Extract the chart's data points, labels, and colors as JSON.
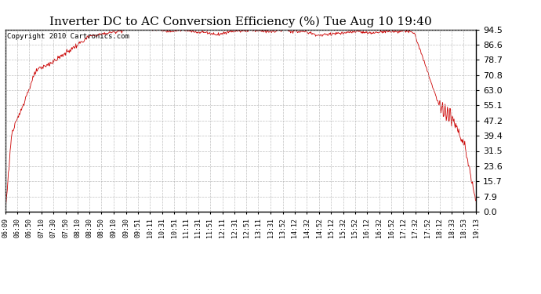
{
  "title": "Inverter DC to AC Conversion Efficiency (%) Tue Aug 10 19:40",
  "copyright_text": "Copyright 2010 Cartronics.com",
  "line_color": "#cc0000",
  "background_color": "#ffffff",
  "plot_bg_color": "#ffffff",
  "grid_color": "#b0b0b0",
  "ylim": [
    0.0,
    94.5
  ],
  "yticks": [
    0.0,
    7.9,
    15.7,
    23.6,
    31.5,
    39.4,
    47.2,
    55.1,
    63.0,
    70.8,
    78.7,
    86.6,
    94.5
  ],
  "xtick_labels": [
    "06:09",
    "06:30",
    "06:50",
    "07:10",
    "07:30",
    "07:50",
    "08:10",
    "08:30",
    "08:50",
    "09:10",
    "09:30",
    "09:51",
    "10:11",
    "10:31",
    "10:51",
    "11:11",
    "11:31",
    "11:51",
    "12:11",
    "12:31",
    "12:51",
    "13:11",
    "13:31",
    "13:52",
    "14:12",
    "14:32",
    "14:52",
    "15:12",
    "15:32",
    "15:52",
    "16:12",
    "16:32",
    "16:52",
    "17:12",
    "17:32",
    "17:52",
    "18:12",
    "18:33",
    "18:53",
    "19:13"
  ],
  "title_fontsize": 11,
  "copyright_fontsize": 6.5,
  "tick_fontsize": 6,
  "ytick_fontsize": 8,
  "figsize": [
    6.9,
    3.75
  ],
  "dpi": 100
}
